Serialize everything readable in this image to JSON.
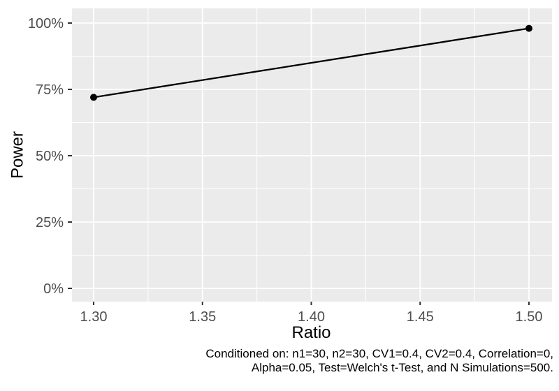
{
  "chart_data": {
    "type": "line",
    "title": "",
    "xlabel": "Ratio",
    "ylabel": "Power",
    "x": [
      1.3,
      1.5
    ],
    "series": [
      {
        "name": "Power",
        "values": [
          72,
          98
        ]
      }
    ],
    "x_ticks": {
      "values": [
        1.3,
        1.35,
        1.4,
        1.45,
        1.5
      ],
      "labels": [
        "1.30",
        "1.35",
        "1.40",
        "1.45",
        "1.50"
      ]
    },
    "y_ticks": {
      "values": [
        0,
        25,
        50,
        75,
        100
      ],
      "labels": [
        "0%",
        "25%",
        "50%",
        "75%",
        "100%"
      ]
    },
    "x_minor_ticks": [
      1.325,
      1.375,
      1.425,
      1.475
    ],
    "y_minor_ticks": [
      12.5,
      37.5,
      62.5,
      87.5
    ],
    "xlim": [
      1.289,
      1.511
    ],
    "ylim": [
      -5,
      105
    ],
    "grid": "major+minor",
    "legend": "none",
    "y_unit": "percent",
    "colors": {
      "background": "#FFFFFF",
      "panel_bg": "#EBEBEB",
      "grid": "#FFFFFF",
      "series": "#000000",
      "point": "#000000",
      "tick_mark": "#333333",
      "tick_label": "#4D4D4D",
      "axis_title": "#000000",
      "caption": "#000000"
    }
  },
  "caption": {
    "lines": [
      "Conditioned on: n1=30, n2=30, CV1=0.4, CV2=0.4, Correlation=0,",
      "Alpha=0.05, Test=Welch's t-Test, and N Simulations=500."
    ]
  }
}
